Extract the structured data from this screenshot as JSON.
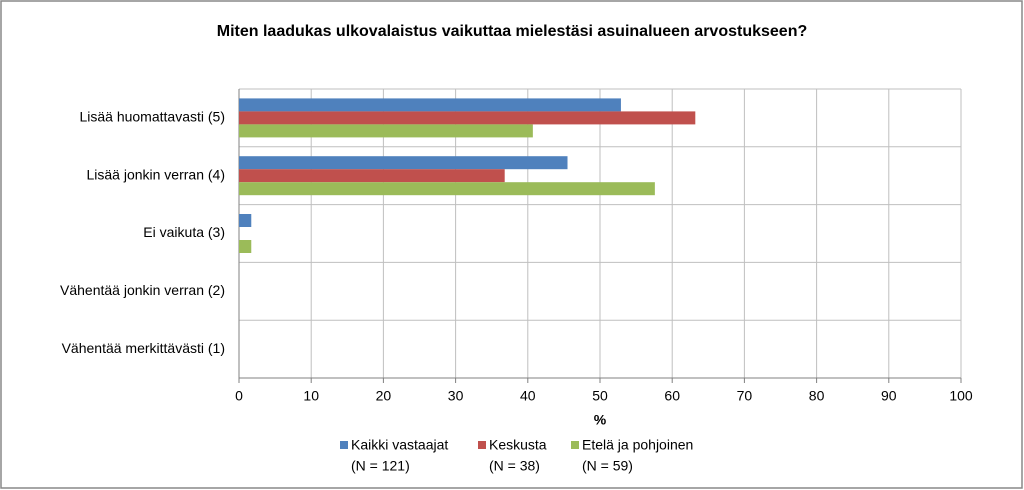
{
  "chart_data": {
    "type": "hbar",
    "title": "Miten laadukas ulkovalaistus vaikuttaa mielestäsi asuinalueen arvostukseen?",
    "categories": [
      "Lisää huomattavasti (5)",
      "Lisää jonkin verran (4)",
      "Ei vaikuta (3)",
      "Vähentää jonkin verran (2)",
      "Vähentää merkittävästi (1)"
    ],
    "series": [
      {
        "name": "Kaikki vastaajat",
        "sample": "(N = 121)",
        "color": "#4f81bd",
        "values": [
          52.9,
          45.5,
          1.7,
          0,
          0
        ]
      },
      {
        "name": "Keskusta",
        "sample": "(N = 38)",
        "color": "#c0504d",
        "values": [
          63.2,
          36.8,
          0,
          0,
          0
        ]
      },
      {
        "name": "Etelä ja pohjoinen",
        "sample": "(N = 59)",
        "color": "#9bbb59",
        "values": [
          40.7,
          57.6,
          1.7,
          0,
          0
        ]
      }
    ],
    "x_label": "%",
    "xlim": [
      0,
      100
    ],
    "xticks": [
      0,
      10,
      20,
      30,
      40,
      50,
      60,
      70,
      80,
      90,
      100
    ],
    "grid": true,
    "legend": "bottom"
  }
}
